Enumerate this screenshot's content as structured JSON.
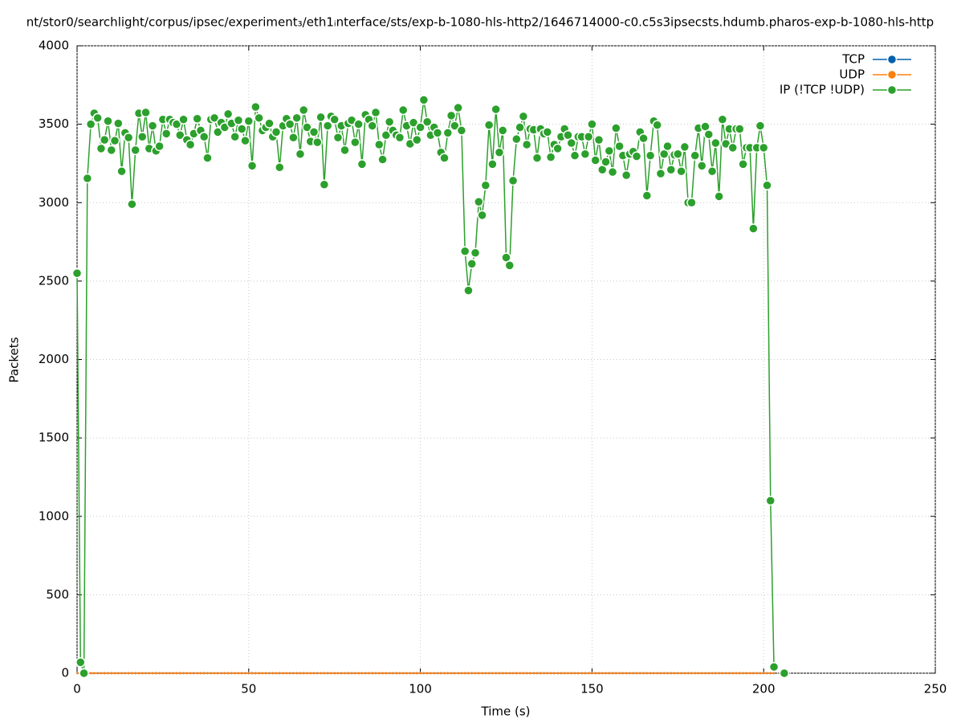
{
  "chart_data": {
    "type": "line",
    "title": "nt/stor0/searchlight/corpus/ipsec/experiment₃/eth1ᵢnterface/sts/exp-b-1080-hls-http2/1646714000-c0.c5s3ipsecsts.hdumb.pharos-exp-b-1080-hls-http",
    "x_label": "Time (s)",
    "y_label": "Packets",
    "xlim": [
      0,
      250
    ],
    "xticks": [
      0,
      50,
      100,
      150,
      200,
      250
    ],
    "ylim": [
      0,
      4000
    ],
    "yticks": [
      0,
      500,
      1000,
      1500,
      2000,
      2500,
      3000,
      3500,
      4000
    ],
    "grid": true,
    "legend": "top-right",
    "x": [
      0,
      1,
      2,
      3,
      4,
      5,
      6,
      7,
      8,
      9,
      10,
      11,
      12,
      13,
      14,
      15,
      16,
      17,
      18,
      19,
      20,
      21,
      22,
      23,
      24,
      25,
      26,
      27,
      28,
      29,
      30,
      31,
      32,
      33,
      34,
      35,
      36,
      37,
      38,
      39,
      40,
      41,
      42,
      43,
      44,
      45,
      46,
      47,
      48,
      49,
      50,
      51,
      52,
      53,
      54,
      55,
      56,
      57,
      58,
      59,
      60,
      61,
      62,
      63,
      64,
      65,
      66,
      67,
      68,
      69,
      70,
      71,
      72,
      73,
      74,
      75,
      76,
      77,
      78,
      79,
      80,
      81,
      82,
      83,
      84,
      85,
      86,
      87,
      88,
      89,
      90,
      91,
      92,
      93,
      94,
      95,
      96,
      97,
      98,
      99,
      100,
      101,
      102,
      103,
      104,
      105,
      106,
      107,
      108,
      109,
      110,
      111,
      112,
      113,
      114,
      115,
      116,
      117,
      118,
      119,
      120,
      121,
      122,
      123,
      124,
      125,
      126,
      127,
      128,
      129,
      130,
      131,
      132,
      133,
      134,
      135,
      136,
      137,
      138,
      139,
      140,
      141,
      142,
      143,
      144,
      145,
      146,
      147,
      148,
      149,
      150,
      151,
      152,
      153,
      154,
      155,
      156,
      157,
      158,
      159,
      160,
      161,
      162,
      163,
      164,
      165,
      166,
      167,
      168,
      169,
      170,
      171,
      172,
      173,
      174,
      175,
      176,
      177,
      178,
      179,
      180,
      181,
      182,
      183,
      184,
      185,
      186,
      187,
      188,
      189,
      190,
      191,
      192,
      193,
      194,
      195,
      196,
      197,
      198,
      199,
      200,
      201,
      202,
      203,
      204,
      205,
      206
    ],
    "series": [
      {
        "name": "TCP",
        "color": "#0060ad",
        "values": [
          0,
          0,
          0,
          0,
          0,
          0,
          0,
          0,
          0,
          0,
          0,
          0,
          0,
          0,
          0,
          0,
          0,
          0,
          0,
          0,
          0,
          0,
          0,
          0,
          0,
          0,
          0,
          0,
          0,
          0,
          0,
          0,
          0,
          0,
          0,
          0,
          0,
          0,
          0,
          0,
          0,
          0,
          0,
          0,
          0,
          0,
          0,
          0,
          0,
          0,
          0,
          0,
          0,
          0,
          0,
          0,
          0,
          0,
          0,
          0,
          0,
          0,
          0,
          0,
          0,
          0,
          0,
          0,
          0,
          0,
          0,
          0,
          0,
          0,
          0,
          0,
          0,
          0,
          0,
          0,
          0,
          0,
          0,
          0,
          0,
          0,
          0,
          0,
          0,
          0,
          0,
          0,
          0,
          0,
          0,
          0,
          0,
          0,
          0,
          0,
          0,
          0,
          0,
          0,
          0,
          0,
          0,
          0,
          0,
          0,
          0,
          0,
          0,
          0,
          0,
          0,
          0,
          0,
          0,
          0,
          0,
          0,
          0,
          0,
          0,
          0,
          0,
          0,
          0,
          0,
          0,
          0,
          0,
          0,
          0,
          0,
          0,
          0,
          0,
          0,
          0,
          0,
          0,
          0,
          0,
          0,
          0,
          0,
          0,
          0,
          0,
          0,
          0,
          0,
          0,
          0,
          0,
          0,
          0,
          0,
          0,
          0,
          0,
          0,
          0,
          0,
          0,
          0,
          0,
          0,
          0,
          0,
          0,
          0,
          0,
          0,
          0,
          0,
          0,
          0,
          0,
          0,
          0,
          0,
          0,
          0,
          0,
          0,
          0,
          0,
          0,
          0,
          0,
          0,
          0,
          0,
          0,
          0,
          0,
          0,
          0,
          0,
          0,
          0,
          null,
          null,
          null
        ]
      },
      {
        "name": "UDP",
        "color": "#ff7f0e",
        "values": [
          0,
          0,
          0,
          0,
          0,
          0,
          0,
          0,
          0,
          0,
          0,
          0,
          0,
          0,
          0,
          0,
          0,
          0,
          0,
          0,
          0,
          0,
          0,
          0,
          0,
          0,
          0,
          0,
          0,
          0,
          0,
          0,
          0,
          0,
          0,
          0,
          0,
          0,
          0,
          0,
          0,
          0,
          0,
          0,
          0,
          0,
          0,
          0,
          0,
          0,
          0,
          0,
          0,
          0,
          0,
          0,
          0,
          0,
          0,
          0,
          0,
          0,
          0,
          0,
          0,
          0,
          0,
          0,
          0,
          0,
          0,
          0,
          0,
          0,
          0,
          0,
          0,
          0,
          0,
          0,
          0,
          0,
          0,
          0,
          0,
          0,
          0,
          0,
          0,
          0,
          0,
          0,
          0,
          0,
          0,
          0,
          0,
          0,
          0,
          0,
          0,
          0,
          0,
          0,
          0,
          0,
          0,
          0,
          0,
          0,
          0,
          0,
          0,
          0,
          0,
          0,
          0,
          0,
          0,
          0,
          0,
          0,
          0,
          0,
          0,
          0,
          0,
          0,
          0,
          0,
          0,
          0,
          0,
          0,
          0,
          0,
          0,
          0,
          0,
          0,
          0,
          0,
          0,
          0,
          0,
          0,
          0,
          0,
          0,
          0,
          0,
          0,
          0,
          0,
          0,
          0,
          0,
          0,
          0,
          0,
          0,
          0,
          0,
          0,
          0,
          0,
          0,
          0,
          0,
          0,
          0,
          0,
          0,
          0,
          0,
          0,
          0,
          0,
          0,
          0,
          0,
          0,
          0,
          0,
          0,
          0,
          0,
          0,
          0,
          0,
          0,
          0,
          0,
          0,
          0,
          0,
          0,
          0,
          0,
          0,
          0,
          0,
          0,
          0,
          null,
          null,
          null
        ]
      },
      {
        "name": "IP (!TCP  !UDP)",
        "color": "#2ca02c",
        "values": [
          2550,
          70,
          0,
          3155,
          3500,
          3570,
          3540,
          3345,
          3400,
          3520,
          3335,
          3395,
          3505,
          3200,
          3445,
          3415,
          2990,
          3335,
          3570,
          3420,
          3575,
          3345,
          3490,
          3330,
          3360,
          3530,
          3440,
          3530,
          3510,
          3500,
          3430,
          3530,
          3400,
          3370,
          3440,
          3535,
          3460,
          3420,
          3285,
          3530,
          3540,
          3450,
          3510,
          3480,
          3565,
          3505,
          3420,
          3525,
          3470,
          3395,
          3520,
          3235,
          3610,
          3540,
          3460,
          3480,
          3505,
          3420,
          3450,
          3225,
          3490,
          3535,
          3500,
          3415,
          3540,
          3310,
          3590,
          3480,
          3390,
          3450,
          3385,
          3545,
          3115,
          3490,
          3550,
          3530,
          3415,
          3490,
          3335,
          3505,
          3525,
          3385,
          3500,
          3245,
          3560,
          3530,
          3490,
          3575,
          3370,
          3275,
          3430,
          3515,
          3460,
          3430,
          3415,
          3590,
          3490,
          3375,
          3510,
          3400,
          3480,
          3655,
          3515,
          3430,
          3480,
          3445,
          3320,
          3285,
          3445,
          3555,
          3490,
          3605,
          3460,
          2690,
          2440,
          2610,
          2680,
          3005,
          2920,
          3110,
          3495,
          3245,
          3595,
          3320,
          3460,
          2650,
          2600,
          3140,
          3405,
          3480,
          3550,
          3370,
          3470,
          3465,
          3285,
          3470,
          3440,
          3450,
          3290,
          3370,
          3345,
          3420,
          3470,
          3430,
          3380,
          3300,
          3420,
          3420,
          3310,
          3420,
          3500,
          3270,
          3400,
          3210,
          3260,
          3330,
          3195,
          3475,
          3360,
          3300,
          3175,
          3310,
          3325,
          3295,
          3450,
          3410,
          3045,
          3300,
          3520,
          3495,
          3185,
          3310,
          3360,
          3210,
          3305,
          3310,
          3200,
          3355,
          3000,
          3000,
          3300,
          3475,
          3235,
          3485,
          3435,
          3200,
          3380,
          3040,
          3530,
          3375,
          3470,
          3350,
          3470,
          3470,
          3245,
          3350,
          3350,
          2835,
          3350,
          3490,
          3350,
          3110,
          1100,
          40,
          null,
          null,
          0
        ]
      }
    ]
  }
}
